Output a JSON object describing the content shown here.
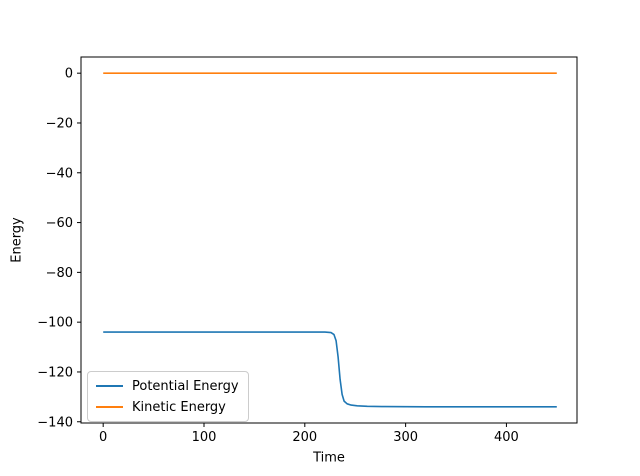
{
  "chart_data": {
    "type": "line",
    "title": "",
    "xlabel": "Time",
    "ylabel": "Energy",
    "xlim": [
      -22,
      470
    ],
    "ylim": [
      -140.5,
      6.5
    ],
    "xticks": [
      0,
      100,
      200,
      300,
      400
    ],
    "yticks": [
      0,
      -20,
      -40,
      -60,
      -80,
      -100,
      -120,
      -140
    ],
    "grid": false,
    "axis_color": "#000000",
    "background_color": "#ffffff",
    "legend": {
      "position": "lower-left",
      "entries": [
        "Potential Energy",
        "Kinetic Energy"
      ]
    },
    "series": [
      {
        "name": "Potential Energy",
        "color": "#1f77b4",
        "x": [
          0,
          50,
          100,
          150,
          200,
          220,
          226,
          229,
          231,
          233,
          235,
          237,
          239,
          242,
          246,
          252,
          262,
          280,
          320,
          380,
          450
        ],
        "y": [
          -104,
          -104,
          -104,
          -104,
          -104,
          -104,
          -104.2,
          -105,
          -107.5,
          -114,
          -123,
          -129,
          -131.7,
          -132.8,
          -133.3,
          -133.6,
          -133.8,
          -133.9,
          -134,
          -134,
          -134
        ]
      },
      {
        "name": "Kinetic Energy",
        "color": "#ff7f0e",
        "x": [
          0,
          450
        ],
        "y": [
          0,
          0
        ]
      }
    ]
  }
}
